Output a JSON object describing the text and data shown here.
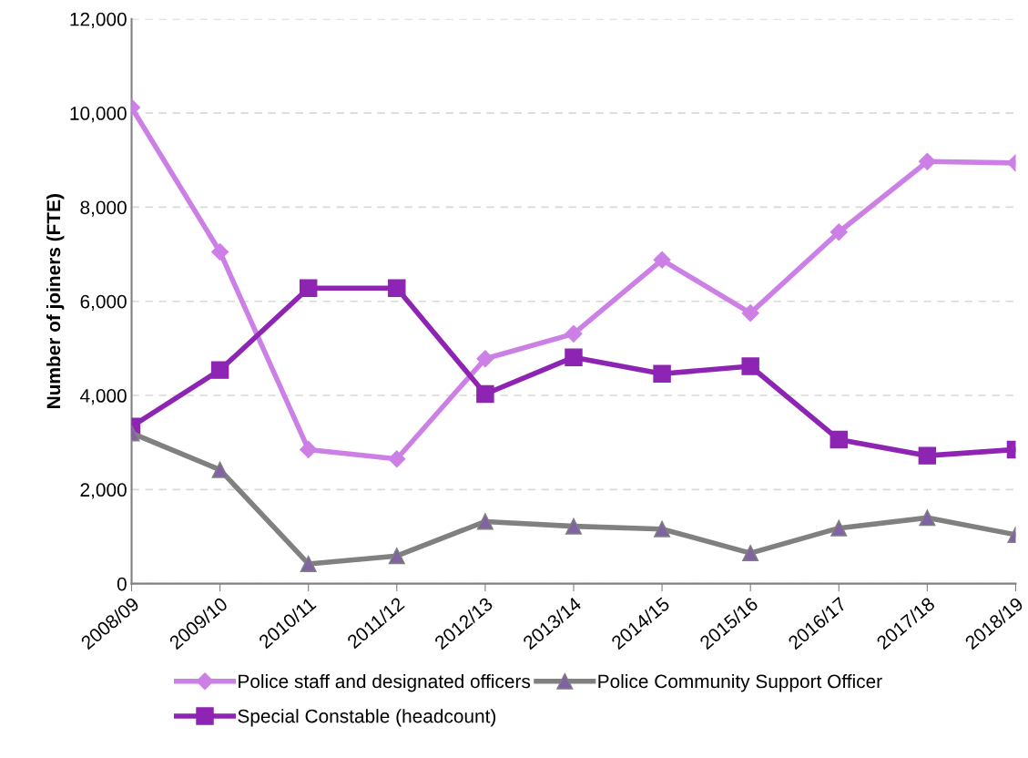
{
  "chart_data": {
    "type": "line",
    "ylabel": "Number of joiners (FTE)",
    "categories": [
      "2008/09",
      "2009/10",
      "2010/11",
      "2011/12",
      "2012/13",
      "2013/14",
      "2014/15",
      "2015/16",
      "2016/17",
      "2017/18",
      "2018/19"
    ],
    "series": [
      {
        "name": "Police staff and designated officers",
        "color": "#cc80e6",
        "marker": "diamond",
        "values": [
          10120,
          7050,
          2850,
          2650,
          4780,
          5310,
          6880,
          5750,
          7470,
          8970,
          8940
        ]
      },
      {
        "name": "Special Constable (headcount)",
        "color": "#8e24b4",
        "marker": "square",
        "values": [
          3340,
          4540,
          6280,
          6280,
          4030,
          4810,
          4460,
          4620,
          3060,
          2720,
          2850
        ]
      },
      {
        "name": "Police Community Support Officer",
        "color": "#808080",
        "marker": "triangle",
        "values": [
          3200,
          2420,
          420,
          590,
          1320,
          1220,
          1160,
          650,
          1180,
          1400,
          1040
        ]
      }
    ],
    "ylim": [
      0,
      12000
    ],
    "yticks": [
      {
        "value": 0,
        "label": "0"
      },
      {
        "value": 2000,
        "label": "2,000"
      },
      {
        "value": 4000,
        "label": "4,000"
      },
      {
        "value": 6000,
        "label": "6,000"
      },
      {
        "value": 8000,
        "label": "8,000"
      },
      {
        "value": 10000,
        "label": "10,000"
      },
      {
        "value": 12000,
        "label": "12,000"
      }
    ],
    "grid": "y",
    "legend": "bottom",
    "line_style": "solid"
  }
}
